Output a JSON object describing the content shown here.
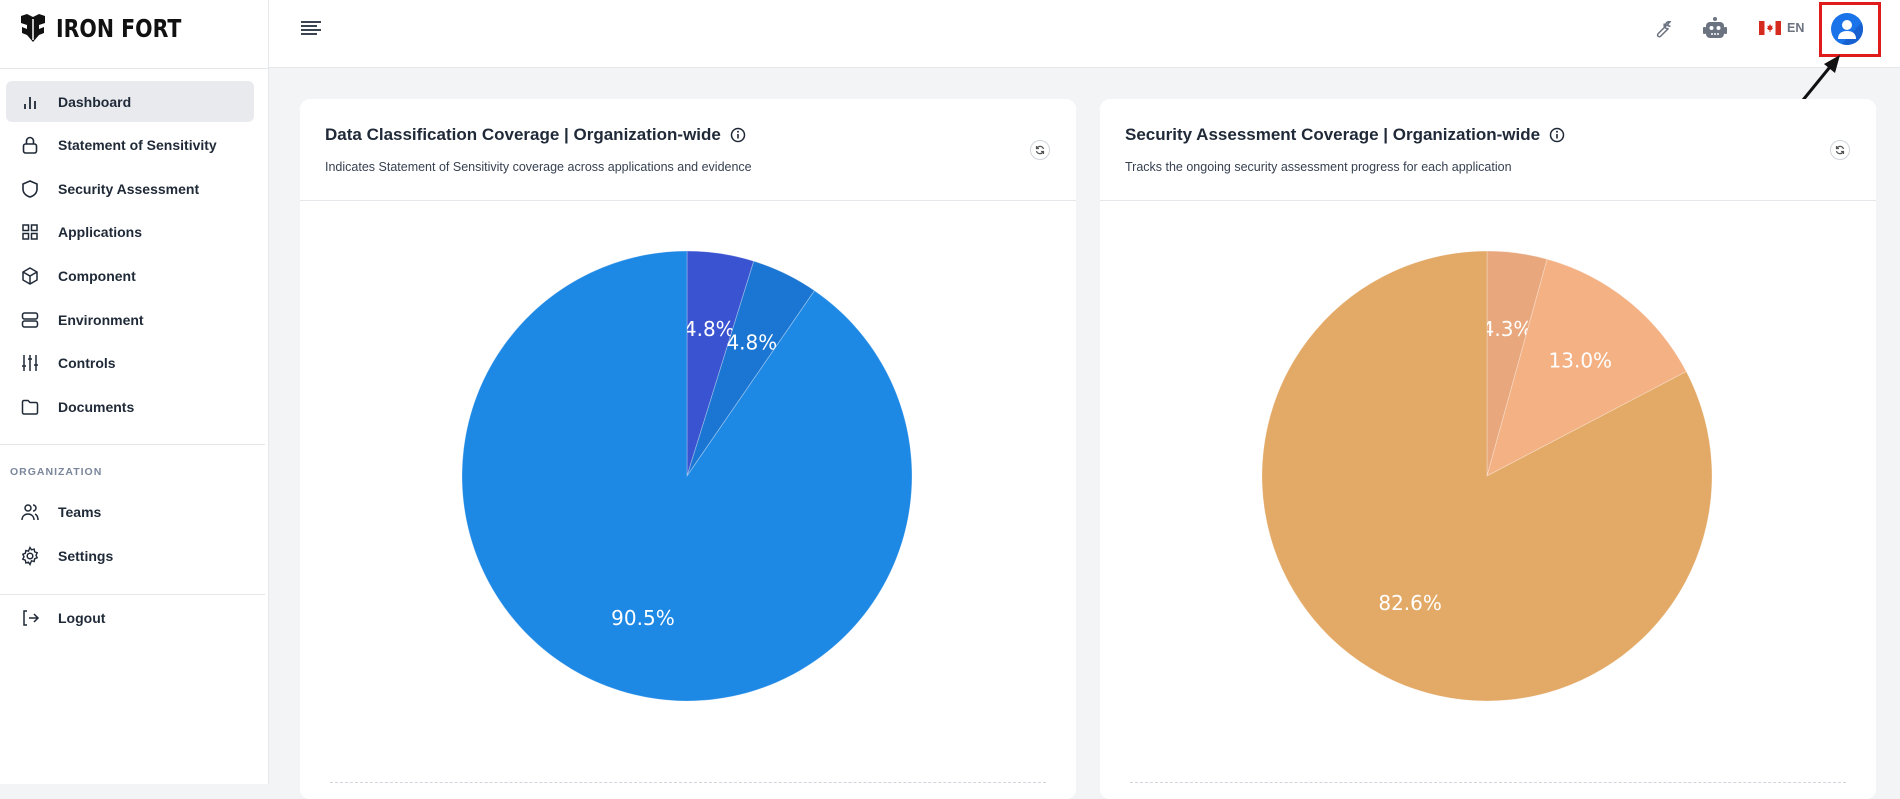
{
  "brand": {
    "name": "IRON FORT"
  },
  "sidebar": {
    "items": [
      {
        "label": "Dashboard",
        "icon": "bar-chart-icon",
        "active": true
      },
      {
        "label": "Statement of Sensitivity",
        "icon": "lock-icon"
      },
      {
        "label": "Security Assessment",
        "icon": "shield-icon"
      },
      {
        "label": "Applications",
        "icon": "grid-icon"
      },
      {
        "label": "Component",
        "icon": "cube-icon"
      },
      {
        "label": "Environment",
        "icon": "server-icon"
      },
      {
        "label": "Controls",
        "icon": "sliders-icon"
      },
      {
        "label": "Documents",
        "icon": "folder-icon"
      }
    ],
    "section_label": "ORGANIZATION",
    "org_items": [
      {
        "label": "Teams",
        "icon": "users-icon"
      },
      {
        "label": "Settings",
        "icon": "gear-icon"
      }
    ],
    "logout": {
      "label": "Logout",
      "icon": "logout-icon"
    }
  },
  "header": {
    "language": "EN",
    "icons": [
      "menu-icon",
      "wrench-icon",
      "robot-icon",
      "canada-flag-icon",
      "user-avatar-icon"
    ]
  },
  "chart_data": [
    {
      "type": "pie",
      "title": "Data Classification Coverage | Organization-wide",
      "subtitle": "Indicates Statement of Sensitivity coverage across applications and evidence",
      "values": [
        4.8,
        4.8,
        90.5
      ],
      "labels": [
        "4.8%",
        "4.8%",
        "90.5%"
      ],
      "colors": [
        "#3a53d0",
        "#1a76d2",
        "#1e88e5"
      ]
    },
    {
      "type": "pie",
      "title": "Security Assessment Coverage | Organization-wide",
      "subtitle": "Tracks the ongoing security assessment progress for each application",
      "values": [
        4.3,
        13.0,
        82.6
      ],
      "labels": [
        "4.3%",
        "13.0%",
        "82.6%"
      ],
      "colors": [
        "#e8a77c",
        "#f3b184",
        "#e3a966"
      ]
    }
  ],
  "colors": {
    "accent": "#1a73e8",
    "highlight_box": "#e01b1b"
  }
}
